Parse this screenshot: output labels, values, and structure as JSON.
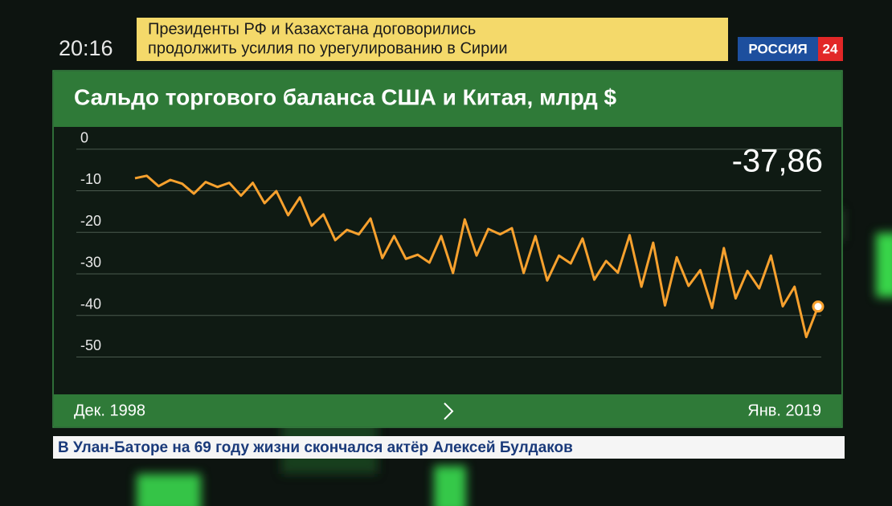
{
  "broadcast": {
    "time": "20:16",
    "headline": [
      "Президенты РФ и Казахстана договорились",
      "продолжить усилия по урегулированию в Сирии"
    ],
    "channel": "РОССИЯ",
    "channel_number": "24",
    "ticker": "В Улан-Баторе на 69 году жизни скончался актёр Алексей Булдаков"
  },
  "chart_data": {
    "type": "line",
    "title": "Сальдо торгового баланса США и Китая, млрд $",
    "categories": [
      "Дек. 1998",
      null,
      null,
      null,
      null,
      null,
      null,
      null,
      null,
      null,
      null,
      null,
      null,
      null,
      null,
      null,
      null,
      null,
      null,
      null,
      null,
      null,
      null,
      null,
      null,
      null,
      null,
      null,
      null,
      null,
      null,
      null,
      null,
      null,
      null,
      null,
      null,
      null,
      null,
      null,
      null,
      null,
      null,
      null,
      null,
      null,
      null,
      null,
      null,
      null,
      null,
      null,
      null,
      null,
      null,
      null,
      null,
      null,
      "Янв. 2019"
    ],
    "values": [
      -7,
      -6.4,
      -8.9,
      -7.4,
      -8.3,
      -10.7,
      -7.9,
      -9.1,
      -8.1,
      -11.2,
      -8.1,
      -13,
      -10.1,
      -15.9,
      -11.6,
      -18.4,
      -15.7,
      -21.9,
      -19.4,
      -20.5,
      -16.7,
      -26.2,
      -20.9,
      -26.4,
      -25.4,
      -27.3,
      -20.9,
      -29.8,
      -16.9,
      -25.6,
      -19.2,
      -20.5,
      -19,
      -29.8,
      -20.9,
      -31.6,
      -25.6,
      -27.5,
      -21.5,
      -31.4,
      -26.9,
      -29.7,
      -20.7,
      -33.1,
      -22.5,
      -37.6,
      -26,
      -32.9,
      -29.1,
      -38.2,
      -23.8,
      -35.9,
      -29.3,
      -33.5,
      -25.6,
      -37.8,
      -33.1,
      -45.2,
      -37.86
    ],
    "value_labels": [
      null,
      null,
      null,
      null,
      null,
      null,
      null,
      null,
      null,
      null,
      null,
      null,
      null,
      null,
      null,
      null,
      null,
      null,
      null,
      null,
      null,
      null,
      null,
      null,
      null,
      null,
      null,
      null,
      null,
      null,
      null,
      null,
      null,
      null,
      null,
      null,
      null,
      null,
      null,
      null,
      null,
      null,
      null,
      null,
      null,
      null,
      null,
      null,
      null,
      null,
      null,
      null,
      null,
      null,
      null,
      null,
      null,
      null,
      "-37,86"
    ],
    "color": "#f7a12e",
    "ylim": [
      -53,
      4
    ],
    "yticks": [
      0,
      -10,
      -20,
      -30,
      -40,
      -50
    ],
    "grid": true
  }
}
